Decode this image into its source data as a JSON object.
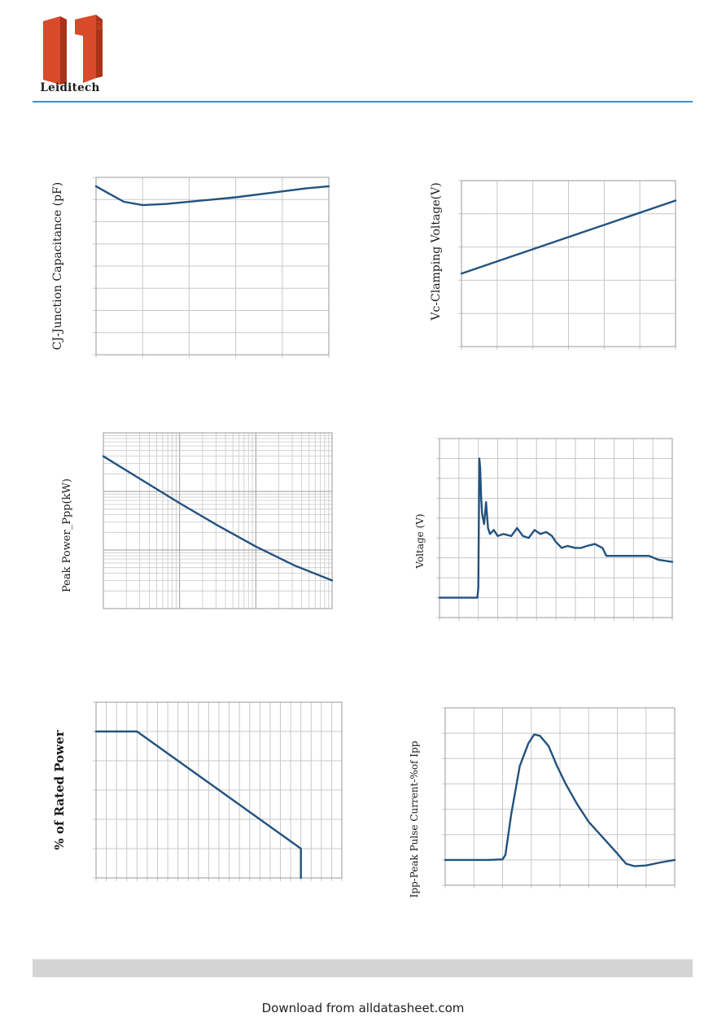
{
  "header": {
    "brand_name": "Leiditech",
    "logo_registered_mark": "®",
    "rule_color": "#3d8fd1"
  },
  "footer": {
    "download_text": "Download from alldatasheet.com"
  },
  "colors": {
    "curve": "#22527f",
    "grid": "#c8c8c8",
    "axis": "#9a9a9a",
    "logo_red": "#d94a2a",
    "logo_dark_red": "#a8331a"
  },
  "chart_data": [
    {
      "id": "cj-capacitance",
      "type": "line",
      "ylabel": "CJ-Junction Capacitance (pF)",
      "xlabel": "",
      "x_divisions": 5,
      "y_divisions": 8,
      "xlim": [
        0,
        1
      ],
      "ylim": [
        0,
        8
      ],
      "series": [
        {
          "x": [
            0,
            0.05,
            0.12,
            0.2,
            0.3,
            0.45,
            0.6,
            0.75,
            0.9,
            1.0
          ],
          "y": [
            7.6,
            7.3,
            6.9,
            6.75,
            6.8,
            6.95,
            7.1,
            7.3,
            7.5,
            7.6
          ]
        }
      ]
    },
    {
      "id": "vc-clamping",
      "type": "line",
      "ylabel": "Vc-Clamping Voltage(V)",
      "xlabel": "",
      "x_divisions": 6,
      "y_divisions": 5,
      "xlim": [
        0,
        1
      ],
      "ylim": [
        0,
        5
      ],
      "series": [
        {
          "x": [
            0,
            1
          ],
          "y": [
            2.2,
            4.4
          ]
        }
      ]
    },
    {
      "id": "peak-power",
      "type": "line",
      "ylabel": "Peak  Power_Ppp(kW)",
      "xlabel": "",
      "log_x": true,
      "log_y": true,
      "x_decades": 3,
      "y_decades": 3,
      "xlim": [
        0,
        3
      ],
      "ylim": [
        0,
        3
      ],
      "series": [
        {
          "x": [
            0,
            0.5,
            1.0,
            1.5,
            2.0,
            2.5,
            3.0
          ],
          "y": [
            2.6,
            2.2,
            1.8,
            1.42,
            1.06,
            0.74,
            0.48
          ]
        }
      ]
    },
    {
      "id": "voltage-waveform",
      "type": "line",
      "ylabel": "Voltage (V)",
      "xlabel": "",
      "x_divisions": 12,
      "y_divisions": 9,
      "xlim": [
        0,
        12
      ],
      "ylim": [
        0,
        9
      ],
      "series": [
        {
          "x": [
            0,
            1.95,
            2.0,
            2.05,
            2.1,
            2.15,
            2.2,
            2.3,
            2.4,
            2.5,
            2.6,
            2.8,
            3.0,
            3.3,
            3.7,
            4.0,
            4.3,
            4.6,
            4.9,
            5.2,
            5.5,
            5.8,
            6.0,
            6.3,
            6.6,
            7.0,
            7.3,
            7.6,
            8.0,
            8.4,
            8.6,
            8.9,
            9.3,
            9.8,
            10.3,
            10.8,
            11.3,
            12.0
          ],
          "y": [
            1.0,
            1.0,
            1.5,
            8.0,
            7.5,
            6.0,
            5.2,
            4.7,
            5.8,
            4.5,
            4.2,
            4.4,
            4.1,
            4.2,
            4.1,
            4.5,
            4.1,
            4.0,
            4.4,
            4.2,
            4.3,
            4.1,
            3.8,
            3.5,
            3.6,
            3.5,
            3.5,
            3.6,
            3.7,
            3.5,
            3.1,
            3.1,
            3.1,
            3.1,
            3.1,
            3.1,
            2.9,
            2.8
          ]
        }
      ]
    },
    {
      "id": "derating",
      "type": "line",
      "ylabel": "% of Rated Power",
      "xlabel": "",
      "x_divisions": 24,
      "y_divisions": 6,
      "xlim": [
        0,
        24
      ],
      "ylim": [
        0,
        6
      ],
      "series": [
        {
          "x": [
            0,
            4,
            20,
            20
          ],
          "y": [
            5,
            5,
            1,
            0
          ]
        }
      ]
    },
    {
      "id": "pulse-current",
      "type": "line",
      "ylabel": "Ipp-Peak Pulse Current-%of Ipp",
      "xlabel": "",
      "x_divisions": 8,
      "y_divisions": 7,
      "xlim": [
        0,
        8
      ],
      "ylim": [
        0,
        7
      ],
      "series": [
        {
          "x": [
            0,
            1.5,
            2.0,
            2.1,
            2.3,
            2.6,
            2.9,
            3.1,
            3.3,
            3.6,
            3.9,
            4.2,
            4.6,
            5.0,
            5.4,
            5.8,
            6.0,
            6.3,
            6.6,
            7.0,
            7.5,
            8.0
          ],
          "y": [
            1.0,
            1.0,
            1.02,
            1.2,
            2.8,
            4.7,
            5.6,
            5.95,
            5.9,
            5.5,
            4.7,
            4.0,
            3.2,
            2.5,
            2.0,
            1.5,
            1.25,
            0.85,
            0.75,
            0.78,
            0.9,
            1.0
          ]
        }
      ]
    }
  ]
}
